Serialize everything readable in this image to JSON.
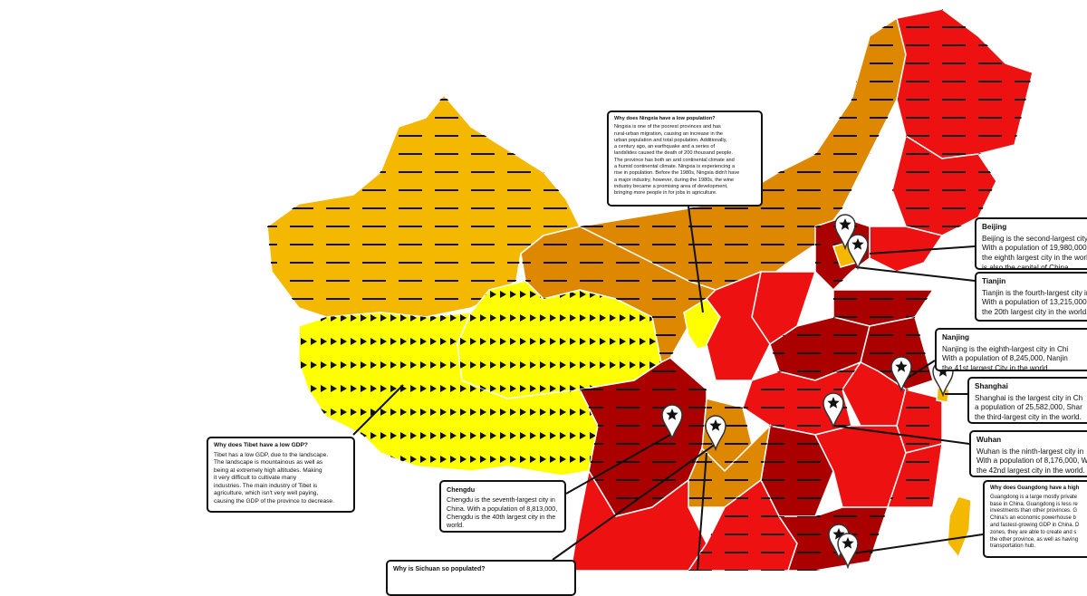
{
  "callouts": [
    {
      "title": "Why does Ningxia have a low population?",
      "lines": [
        "Ningxia is one of the poorest provinces and has",
        "rural-urban migration, causing an increase in the",
        "urban population and total population. Additionally,",
        "a century ago, an earthquake and a series of",
        "landslides caused the death of 200 thousand people.",
        "The province has both an arid continental climate and",
        "a humid continental climate. Ningxia is experiencing a",
        "rise in population. Before the 1980s, Ningxia didn't have",
        "a major industry, however, during the 1980s, the wine",
        "industry became a promising area of development,",
        "bringing more people in for jobs in agriculture."
      ]
    },
    {
      "title": "Beijing",
      "lines": [
        "Beijing is the second-largest city i",
        "With a population of 19,980,000,",
        "the eighth largest city in the world",
        "is also the capital of China."
      ]
    },
    {
      "title": "Tianjin",
      "lines": [
        "Tianjin is the fourth-largest city in",
        "With a population of 13,215,000,",
        "the 20th largest city in the world."
      ]
    },
    {
      "title": "Nanjing",
      "lines": [
        "Nanjing is the eighth-largest city in Chi",
        "With a population of 8,245,000, Nanjin",
        "the 41st largest City in the world"
      ]
    },
    {
      "title": "Shanghai",
      "lines": [
        "Shanghai is the largest city in Ch",
        "a population of 25,582,000, Shar",
        "the third-largest city in the world."
      ]
    },
    {
      "title": "Wuhan",
      "lines": [
        "Wuhan is the ninth-largest city in",
        "With a population of 8,176,000, W",
        "the 42nd largest city in the world."
      ]
    },
    {
      "title": "Why does Guangdong have a high",
      "lines": [
        "Guangdong is a large mostly private",
        "base in China. Guangdong is less re",
        "investments than other provinces. G",
        "China's an economic powerhouse b",
        "and fastest-growing GDP in China. D",
        "zones, they are able to create and s",
        "the other province, as well as having",
        "transportation hub."
      ]
    },
    {
      "title": "Why does Tibet have a low GDP?",
      "lines": [
        "Tibet has a low GDP, due to the landscape.",
        "The landscape is mountainous as well as",
        "being at extremely high altitudes. Making",
        "it very difficult to cultivate many",
        "industries. The main industry of Tibet is",
        "agriculture, which isn't very well paying,",
        "causing the GDP of the province to decrease."
      ]
    },
    {
      "title": "Chengdu",
      "lines": [
        "Chengdu is the seventh-largest city in",
        "China. With a population of 8,813,000,",
        "Chengdu is the 40th largest city in the",
        "world."
      ]
    },
    {
      "title": "Why is Sichuan so populated?",
      "lines": []
    }
  ]
}
